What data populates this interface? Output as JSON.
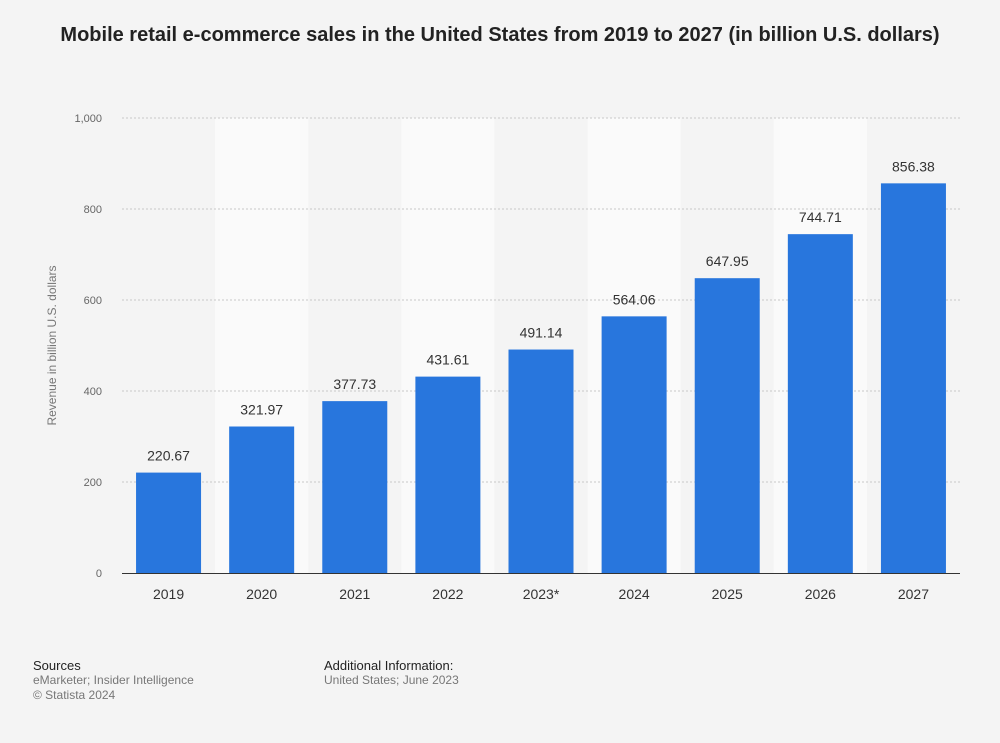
{
  "chart_data": {
    "type": "bar",
    "title": "Mobile retail e-commerce sales in the United States from 2019 to 2027 (in billion U.S. dollars)",
    "xlabel": "",
    "ylabel": "Revenue in billion U.S. dollars",
    "categories": [
      "2019",
      "2020",
      "2021",
      "2022",
      "2023*",
      "2024",
      "2025",
      "2026",
      "2027"
    ],
    "values": [
      220.67,
      321.97,
      377.73,
      431.61,
      491.14,
      564.06,
      647.95,
      744.71,
      856.38
    ],
    "value_labels": [
      "220.67",
      "321.97",
      "377.73",
      "431.61",
      "491.14",
      "564.06",
      "647.95",
      "744.71",
      "856.38"
    ],
    "ylim": [
      0,
      1000
    ],
    "yticks": [
      0,
      200,
      400,
      600,
      800,
      1000
    ],
    "ytick_labels": [
      "0",
      "200",
      "400",
      "600",
      "800",
      "1,000"
    ],
    "grid": true,
    "bar_color": "#2876dd"
  },
  "footer": {
    "sources_label": "Sources",
    "sources_text": "eMarketer; Insider Intelligence",
    "copyright": "© Statista 2024",
    "additional_label": "Additional Information:",
    "additional_text": "United States; June 2023"
  }
}
